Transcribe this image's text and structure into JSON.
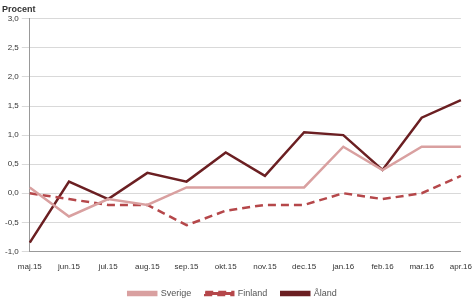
{
  "chart_data": {
    "type": "line",
    "y_label": "Procent",
    "categories": [
      "maj.15",
      "jun.15",
      "jul.15",
      "aug.15",
      "sep.15",
      "okt.15",
      "nov.15",
      "dec.15",
      "jan.16",
      "feb.16",
      "mar.16",
      "apr.16"
    ],
    "series": [
      {
        "name": "Sverige",
        "color": "#d9a0a0",
        "line_style": "solid",
        "marker": "none",
        "values": [
          0.1,
          -0.4,
          -0.1,
          -0.2,
          0.1,
          0.1,
          0.1,
          0.1,
          0.8,
          0.4,
          0.8,
          0.8
        ]
      },
      {
        "name": "Finland",
        "color": "#b5474a",
        "line_style": "dashed",
        "marker": "none",
        "values": [
          0.0,
          -0.1,
          -0.2,
          -0.2,
          -0.55,
          -0.3,
          -0.2,
          -0.2,
          0.0,
          -0.1,
          0.0,
          0.3
        ]
      },
      {
        "name": "Åland",
        "color": "#6b1f22",
        "line_style": "solid",
        "marker": "none",
        "values": [
          -0.85,
          0.2,
          -0.1,
          0.35,
          0.2,
          0.7,
          0.3,
          1.05,
          1.0,
          0.4,
          1.3,
          1.6
        ]
      }
    ],
    "ylim": [
      -1,
      3
    ],
    "yticks": [
      {
        "value": -1,
        "label": "-1,0"
      },
      {
        "value": -0.5,
        "label": "-0,5"
      },
      {
        "value": 0,
        "label": "0,0"
      },
      {
        "value": 0.5,
        "label": "0,5"
      },
      {
        "value": 1,
        "label": "1,0"
      },
      {
        "value": 1.5,
        "label": "1,5"
      },
      {
        "value": 2,
        "label": "2,0"
      },
      {
        "value": 2.5,
        "label": "2,5"
      },
      {
        "value": 3,
        "label": "3,0"
      }
    ],
    "grid": true,
    "legend": "bottom"
  }
}
